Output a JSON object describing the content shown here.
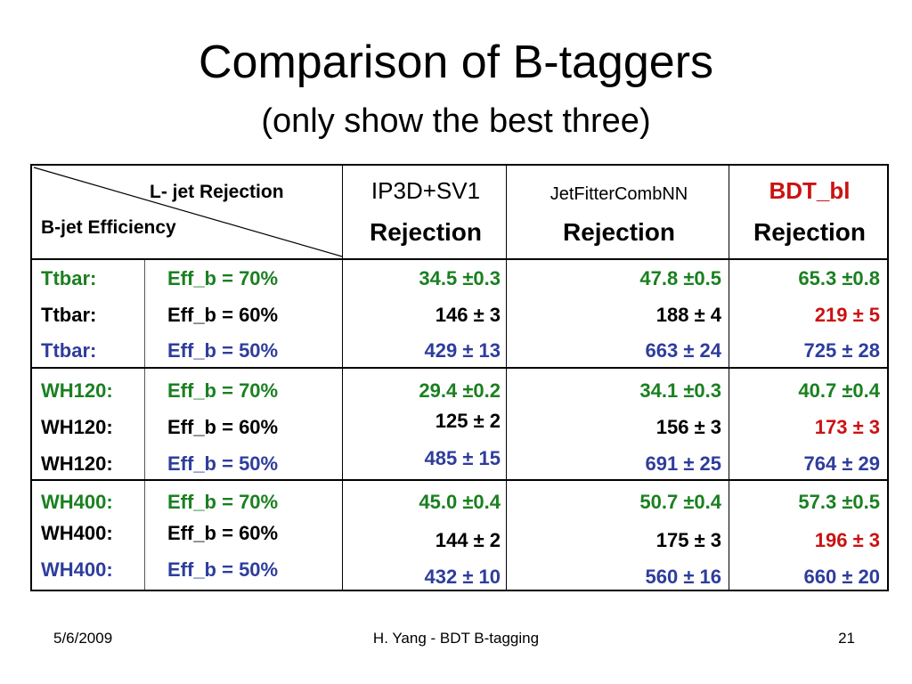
{
  "title": "Comparison of B-taggers",
  "subtitle": "(only show the best three)",
  "table": {
    "corner_top": "L- jet Rejection",
    "corner_bottom": "B-jet Efficiency",
    "columns": [
      {
        "name": "IP3D+SV1",
        "sub": "Rejection"
      },
      {
        "name": "JetFitterCombNN",
        "sub": "Rejection"
      },
      {
        "name": "BDT_bl",
        "sub": "Rejection",
        "name_color": "#cc1111"
      }
    ],
    "rows": [
      {
        "sample": "Ttbar:",
        "eff": "Eff_b = 70%",
        "vals": [
          "34.5 ±0.3",
          "47.8  ±0.5",
          "65.3  ±0.8"
        ]
      },
      {
        "sample": "Ttbar:",
        "eff": "Eff_b = 60%",
        "vals": [
          "146 ±  3",
          "188 ±  4",
          "219 ±  5"
        ]
      },
      {
        "sample": "Ttbar:",
        "eff": "Eff_b = 50%",
        "vals": [
          "429 ± 13",
          "663 ± 24",
          "725 ± 28"
        ]
      },
      {
        "sample": "WH120:",
        "eff": "Eff_b = 70%",
        "vals": [
          "29.4 ±0.2",
          "34.1 ±0.3",
          "40.7  ±0.4"
        ]
      },
      {
        "sample": "WH120:",
        "eff": "Eff_b = 60%",
        "vals": [
          "125 ±  2",
          "156 ±  3",
          "173 ±  3"
        ]
      },
      {
        "sample": "WH120:",
        "eff": "Eff_b = 50%",
        "vals": [
          "485 ± 15",
          "691 ± 25",
          "764 ± 29"
        ]
      },
      {
        "sample": "WH400:",
        "eff": "Eff_b = 70%",
        "vals": [
          "45.0 ±0.4",
          "50.7 ±0.4",
          "57.3 ±0.5"
        ]
      },
      {
        "sample": "WH400:",
        "eff": "Eff_b = 60%",
        "vals": [
          "144 ±  2",
          "175 ±  3",
          "196 ±  3"
        ]
      },
      {
        "sample": "WH400:",
        "eff": "Eff_b = 50%",
        "vals": [
          "432 ± 10",
          "560 ± 16",
          "660 ± 20"
        ]
      }
    ],
    "colors": {
      "green": "#1a8020",
      "black": "#000000",
      "blue": "#2e3d9c",
      "red": "#cc1111"
    }
  },
  "footer": {
    "date": "5/6/2009",
    "center": "H. Yang - BDT B-tagging",
    "page": "21"
  }
}
